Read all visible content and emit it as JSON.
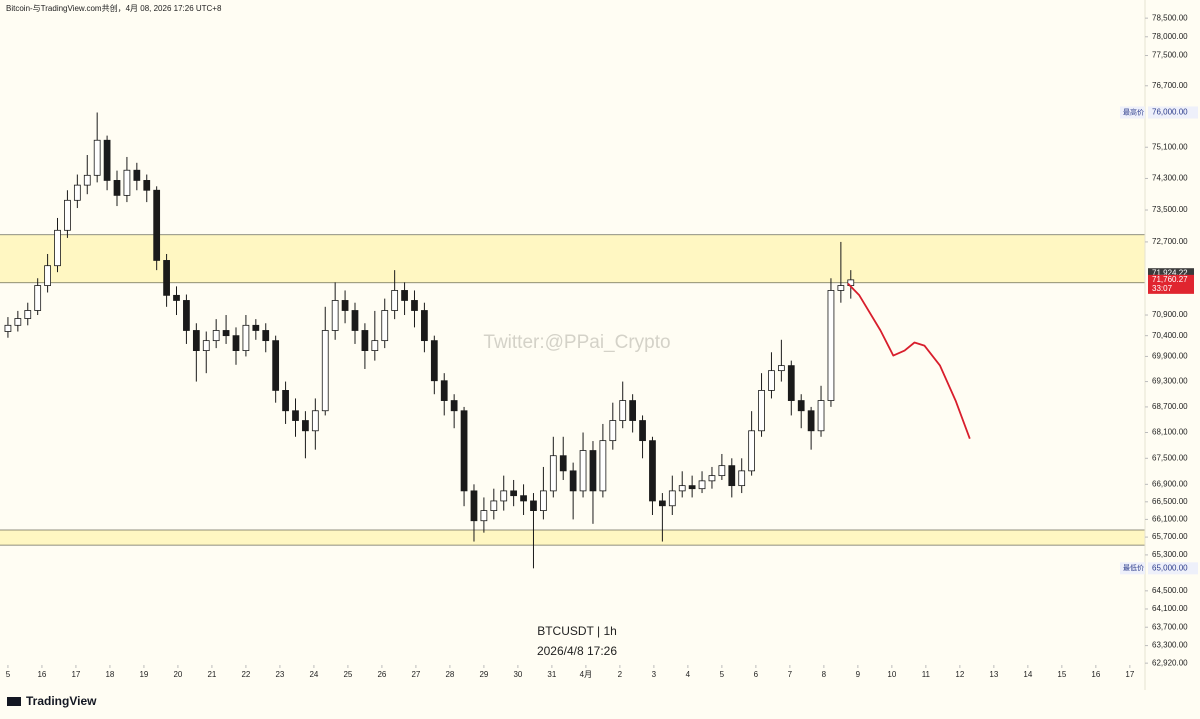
{
  "chart_data": {
    "type": "candlestick",
    "title": "Bitcoin-与TradingView.com共创，4月 08, 2026 17:26 UTC+8",
    "watermark": "Twitter:@PPai_Crypto",
    "symbol": "BTCUSDT | 1h",
    "timestamp": "2026/4/8 17:26",
    "logo": "TradingView",
    "log_scale": true,
    "up_color": "#ffffff",
    "down_color": "#1a1a1a",
    "wick_color": "#1a1a1a",
    "x": [
      0,
      7,
      14,
      21,
      28,
      35,
      42,
      49,
      56,
      63,
      70,
      77,
      84,
      91,
      98,
      105,
      112,
      119,
      126,
      133,
      140,
      147,
      154,
      161,
      168,
      175,
      182,
      189,
      196,
      203,
      210,
      217,
      224,
      231,
      238,
      245,
      252,
      259,
      266,
      273,
      280,
      287,
      294,
      301,
      308,
      315,
      322,
      329,
      336,
      343,
      350,
      357,
      364,
      371,
      378,
      385,
      392,
      399,
      406,
      413,
      420,
      427,
      434,
      441,
      448,
      455,
      462,
      469,
      476,
      483,
      490,
      497,
      504,
      511,
      518,
      525,
      532,
      539,
      546,
      553,
      560,
      567,
      574,
      581,
      588,
      595
    ],
    "open": [
      70500,
      70650,
      70815,
      71010,
      71620,
      72110,
      72990,
      73745,
      74130,
      74380,
      75280,
      74250,
      73870,
      74510,
      74250,
      74000,
      72240,
      71380,
      71255,
      70525,
      70040,
      70280,
      70525,
      70400,
      70040,
      70650,
      70525,
      70280,
      69090,
      68610,
      68380,
      68140,
      68610,
      70525,
      71255,
      71010,
      70525,
      70040,
      70280,
      71010,
      71500,
      71255,
      71010,
      70280,
      69320,
      68850,
      68610,
      66750,
      66070,
      66300,
      66520,
      66750,
      66640,
      66520,
      66300,
      66750,
      67560,
      67210,
      66750,
      67680,
      66750,
      67910,
      68380,
      68850,
      68380,
      67910,
      66520,
      66410,
      66750,
      66870,
      66800,
      66980,
      67100,
      67330,
      66870,
      67210,
      68140,
      69090,
      69560,
      69680,
      68850,
      68610,
      68140,
      68850,
      71500,
      71620
    ],
    "high": [
      70850,
      71000,
      71200,
      71800,
      72400,
      73300,
      74000,
      74400,
      74900,
      76000,
      75400,
      74500,
      74850,
      74700,
      74400,
      74100,
      72400,
      71600,
      71400,
      70700,
      70500,
      70800,
      70900,
      70600,
      70900,
      70800,
      70700,
      70400,
      69300,
      68900,
      68600,
      68900,
      71100,
      71700,
      71500,
      71200,
      70700,
      71000,
      71300,
      72000,
      71700,
      71500,
      71200,
      70400,
      69500,
      69000,
      68700,
      66900,
      66600,
      66800,
      67100,
      67000,
      66900,
      66700,
      67300,
      68000,
      68000,
      67400,
      68100,
      67900,
      68300,
      68800,
      69300,
      69000,
      68500,
      68000,
      66700,
      67100,
      67200,
      67100,
      67200,
      67300,
      67600,
      67500,
      67500,
      68600,
      69500,
      70000,
      70300,
      69800,
      69000,
      68700,
      69200,
      71800,
      72700,
      72000
    ],
    "low": [
      70350,
      70500,
      70650,
      70900,
      71450,
      71950,
      72800,
      73550,
      73900,
      74200,
      74000,
      73600,
      73700,
      74000,
      73700,
      72000,
      71100,
      70900,
      70200,
      69300,
      69500,
      70100,
      70200,
      69700,
      69900,
      70300,
      70000,
      68800,
      68300,
      68000,
      67500,
      67700,
      68500,
      70300,
      70700,
      70200,
      69600,
      69800,
      70100,
      70800,
      70900,
      70600,
      70000,
      69000,
      68500,
      68200,
      66400,
      65600,
      65800,
      66100,
      66300,
      66400,
      66200,
      65000,
      66100,
      66600,
      67000,
      66100,
      66600,
      66000,
      66600,
      67700,
      68200,
      68100,
      67500,
      66200,
      65600,
      66200,
      66600,
      66600,
      66700,
      66800,
      67000,
      66600,
      66700,
      67100,
      68000,
      68900,
      69300,
      68500,
      68200,
      67700,
      68000,
      68700,
      71200,
      71300
    ],
    "close": [
      70650,
      70815,
      71010,
      71620,
      72110,
      72990,
      73745,
      74130,
      74380,
      75280,
      74250,
      73870,
      74510,
      74250,
      74000,
      72240,
      71380,
      71255,
      70525,
      70040,
      70280,
      70525,
      70400,
      70040,
      70650,
      70525,
      70280,
      69090,
      68610,
      68380,
      68140,
      68610,
      70525,
      71255,
      71010,
      70525,
      70040,
      70280,
      71010,
      71500,
      71255,
      71010,
      70280,
      69320,
      68850,
      68610,
      66750,
      66070,
      66300,
      66520,
      66750,
      66640,
      66520,
      66300,
      66750,
      67560,
      67210,
      66750,
      67680,
      66750,
      67910,
      68380,
      68850,
      68380,
      67910,
      66520,
      66410,
      66750,
      66870,
      66800,
      66980,
      67100,
      67330,
      66870,
      67210,
      68140,
      69090,
      69560,
      69680,
      68850,
      68610,
      68140,
      68850,
      71500,
      71620,
      71760
    ],
    "projection": {
      "color": "#d81e2c",
      "x": [
        593,
        601,
        616,
        625,
        633,
        640,
        647,
        658,
        669,
        679
      ],
      "values": [
        71670,
        71380,
        70525,
        69920,
        70040,
        70235,
        70160,
        69680,
        68850,
        67955
      ]
    },
    "zones": [
      {
        "top": 72880,
        "bottom": 71690,
        "color": "#fff7c2"
      },
      {
        "top": 65860,
        "bottom": 65520,
        "color": "#fff7c2"
      }
    ],
    "xlim": [
      -5.6,
      802.7
    ],
    "ylim": [
      62880,
      78990
    ],
    "xticks": [
      {
        "value": 0,
        "label": "5"
      },
      {
        "value": 24,
        "label": "16"
      },
      {
        "value": 48,
        "label": "17"
      },
      {
        "value": 72,
        "label": "18"
      },
      {
        "value": 96,
        "label": "19"
      },
      {
        "value": 120,
        "label": "20"
      },
      {
        "value": 144,
        "label": "21"
      },
      {
        "value": 168,
        "label": "22"
      },
      {
        "value": 192,
        "label": "23"
      },
      {
        "value": 216,
        "label": "24"
      },
      {
        "value": 240,
        "label": "25"
      },
      {
        "value": 264,
        "label": "26"
      },
      {
        "value": 288,
        "label": "27"
      },
      {
        "value": 312,
        "label": "28"
      },
      {
        "value": 336,
        "label": "29"
      },
      {
        "value": 360,
        "label": "30"
      },
      {
        "value": 384,
        "label": "31"
      },
      {
        "value": 408,
        "label": "4月"
      },
      {
        "value": 432,
        "label": "2"
      },
      {
        "value": 456,
        "label": "3"
      },
      {
        "value": 480,
        "label": "4"
      },
      {
        "value": 504,
        "label": "5"
      },
      {
        "value": 528,
        "label": "6"
      },
      {
        "value": 552,
        "label": "7"
      },
      {
        "value": 576,
        "label": "8"
      },
      {
        "value": 600,
        "label": "9"
      },
      {
        "value": 624,
        "label": "10"
      },
      {
        "value": 648,
        "label": "11"
      },
      {
        "value": 672,
        "label": "12"
      },
      {
        "value": 696,
        "label": "13"
      },
      {
        "value": 720,
        "label": "14"
      },
      {
        "value": 744,
        "label": "15"
      },
      {
        "value": 768,
        "label": "16"
      },
      {
        "value": 792,
        "label": "17"
      }
    ],
    "yticks": [
      {
        "value": 78500,
        "label": "78,500.00"
      },
      {
        "value": 78000,
        "label": "78,000.00"
      },
      {
        "value": 77500,
        "label": "77,500.00"
      },
      {
        "value": 76700,
        "label": "76,700.00"
      },
      {
        "value": 75100,
        "label": "75,100.00"
      },
      {
        "value": 74300,
        "label": "74,300.00"
      },
      {
        "value": 73500,
        "label": "73,500.00"
      },
      {
        "value": 72700,
        "label": "72,700.00"
      },
      {
        "value": 70900,
        "label": "70,900.00"
      },
      {
        "value": 70400,
        "label": "70,400.00"
      },
      {
        "value": 69900,
        "label": "69,900.00"
      },
      {
        "value": 69300,
        "label": "69,300.00"
      },
      {
        "value": 68700,
        "label": "68,700.00"
      },
      {
        "value": 68100,
        "label": "68,100.00"
      },
      {
        "value": 67500,
        "label": "67,500.00"
      },
      {
        "value": 66900,
        "label": "66,900.00"
      },
      {
        "value": 66500,
        "label": "66,500.00"
      },
      {
        "value": 66100,
        "label": "66,100.00"
      },
      {
        "value": 65700,
        "label": "65,700.00"
      },
      {
        "value": 65300,
        "label": "65,300.00"
      },
      {
        "value": 64500,
        "label": "64,500.00"
      },
      {
        "value": 64100,
        "label": "64,100.00"
      },
      {
        "value": 63700,
        "label": "63,700.00"
      },
      {
        "value": 63300,
        "label": "63,300.00"
      },
      {
        "value": 62920,
        "label": "62,920.00"
      }
    ],
    "high_marker": {
      "label": "最高价",
      "value": 76000,
      "value_label": "76,000.00"
    },
    "low_marker": {
      "label": "最低价",
      "value": 65000,
      "value_label": "65,000.00"
    },
    "price_badges": [
      {
        "value": 71924.22,
        "label": "71,924.22",
        "color": "#3a3a3a"
      },
      {
        "value": 71760.27,
        "label": "71,760.27",
        "color": "#e0252f",
        "countdown": "33:07"
      }
    ]
  }
}
